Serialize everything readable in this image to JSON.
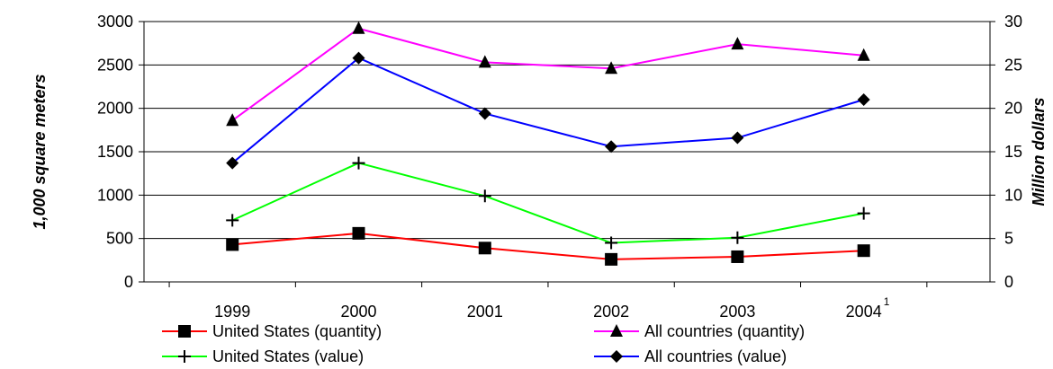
{
  "chart_data": {
    "type": "line",
    "categories": [
      "1999",
      "2000",
      "2001",
      "2002",
      "2003",
      "2004"
    ],
    "footnote_marker": "1",
    "ylabel": "1,000 square meters",
    "y2label": "Million dollars",
    "ylim": [
      0,
      3000
    ],
    "y2lim": [
      0,
      30
    ],
    "yticks": [
      "0",
      "500",
      "1000",
      "1500",
      "2000",
      "2500",
      "3000"
    ],
    "y2ticks": [
      "0",
      "5",
      "10",
      "15",
      "20",
      "25",
      "30"
    ],
    "grid": true,
    "legend_placement": "bottom",
    "series": [
      {
        "name": "United States (quantity)",
        "axis": "left",
        "color": "#ff0000",
        "marker": "square",
        "values": [
          430,
          560,
          390,
          260,
          290,
          360
        ]
      },
      {
        "name": "All countries (quantity)",
        "axis": "left",
        "color": "#ff00ff",
        "marker": "triangle",
        "values": [
          1860,
          2920,
          2530,
          2460,
          2740,
          2610
        ]
      },
      {
        "name": "United States (value)",
        "axis": "right",
        "color": "#00ff00",
        "marker": "plus",
        "values": [
          7.1,
          13.7,
          9.9,
          4.5,
          5.1,
          7.9
        ]
      },
      {
        "name": "All countries (value)",
        "axis": "right",
        "color": "#0000ff",
        "marker": "diamond",
        "values": [
          13.7,
          25.8,
          19.4,
          15.6,
          16.6,
          21.0
        ]
      }
    ]
  }
}
